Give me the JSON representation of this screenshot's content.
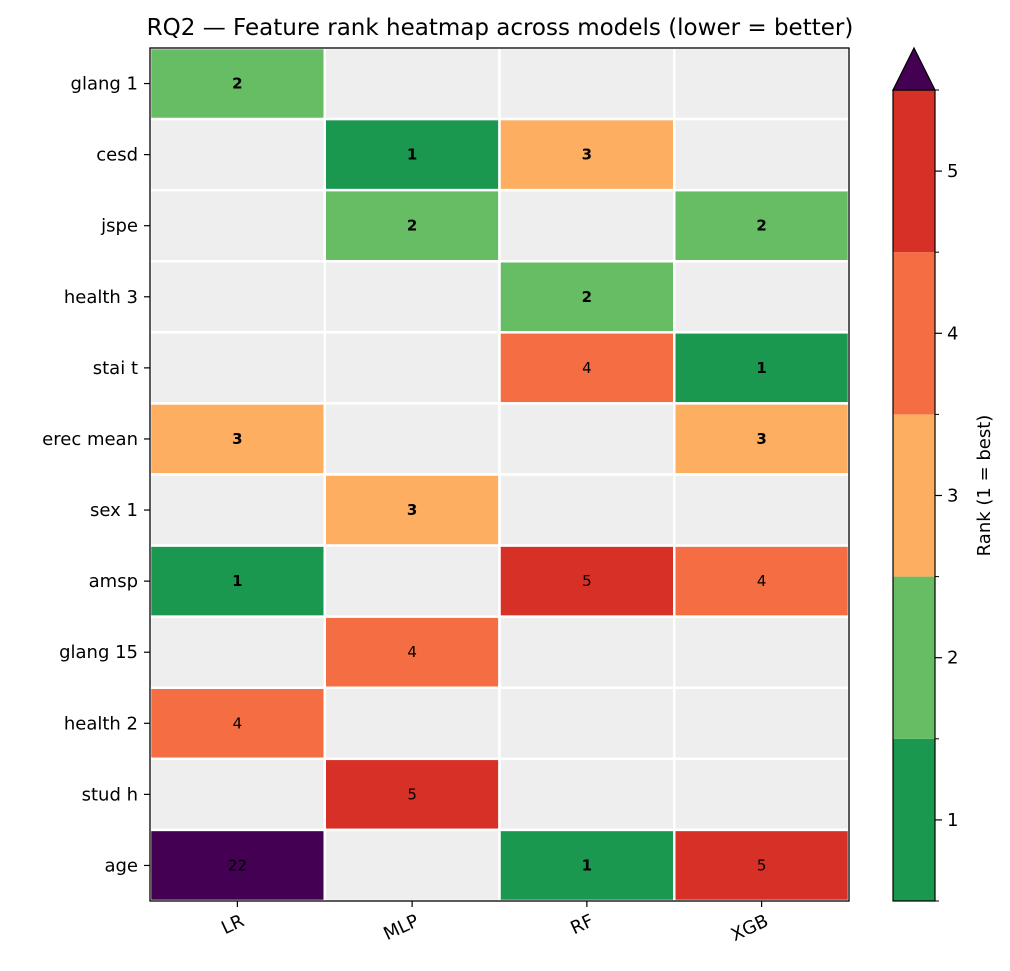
{
  "chart_data": {
    "type": "heatmap",
    "title": "RQ2 — Feature rank heatmap across models (lower = better)",
    "rows": [
      "glang 1",
      "cesd",
      "jspe",
      "health 3",
      "stai t",
      "erec mean",
      "sex 1",
      "amsp",
      "glang 15",
      "health 2",
      "stud h",
      "age"
    ],
    "columns": [
      "LR",
      "MLP",
      "RF",
      "XGB"
    ],
    "values": [
      [
        2,
        null,
        null,
        null
      ],
      [
        null,
        1,
        3,
        null
      ],
      [
        null,
        2,
        null,
        2
      ],
      [
        null,
        null,
        2,
        null
      ],
      [
        null,
        null,
        4,
        1
      ],
      [
        3,
        null,
        null,
        3
      ],
      [
        null,
        3,
        null,
        null
      ],
      [
        1,
        null,
        5,
        4
      ],
      [
        null,
        4,
        null,
        null
      ],
      [
        4,
        null,
        null,
        null
      ],
      [
        null,
        5,
        null,
        null
      ],
      [
        22,
        null,
        1,
        5
      ]
    ],
    "colorbar": {
      "label": "Rank (1 = best)",
      "ticks": [
        "1",
        "2",
        "3",
        "4",
        "5"
      ],
      "range": [
        0.5,
        5.5
      ],
      "extend": "max"
    },
    "colors": {
      "rank_1": "#1a9850",
      "rank_2": "#66bd63",
      "rank_3": "#fdae61",
      "rank_4": "#f46d43",
      "rank_5": "#d73027",
      "over": "#440154",
      "missing": "#eeeeee"
    }
  }
}
